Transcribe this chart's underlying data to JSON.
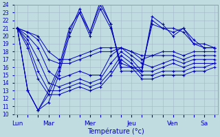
{
  "title": "",
  "xlabel": "Température (°c)",
  "ylabel": "",
  "bg_color": "#c0dce0",
  "grid_color": "#a0b8c8",
  "line_color": "#0000bb",
  "ylim": [
    10,
    24
  ],
  "yticks": [
    10,
    11,
    12,
    13,
    14,
    15,
    16,
    17,
    18,
    19,
    20,
    21,
    22,
    23,
    24
  ],
  "day_labels": [
    "Lun",
    "Mar",
    "Mer",
    "Jeu",
    "Ven",
    "Sa"
  ],
  "day_positions": [
    0,
    3,
    7,
    11,
    15,
    18
  ],
  "num_points": 20,
  "series": [
    [
      21.0,
      20.5,
      20.0,
      18.0,
      17.0,
      17.0,
      17.5,
      18.0,
      18.5,
      18.5,
      18.5,
      18.0,
      17.5,
      17.5,
      18.0,
      18.0,
      17.5,
      18.0,
      18.0,
      18.0
    ],
    [
      21.0,
      20.5,
      19.5,
      17.0,
      16.5,
      16.5,
      17.0,
      17.5,
      18.0,
      18.0,
      18.5,
      18.0,
      17.0,
      17.5,
      17.5,
      17.5,
      17.0,
      17.5,
      17.5,
      17.5
    ],
    [
      21.0,
      20.0,
      18.5,
      15.5,
      14.5,
      15.0,
      15.5,
      15.0,
      15.0,
      17.5,
      18.5,
      17.5,
      16.5,
      16.0,
      16.5,
      17.0,
      16.5,
      17.0,
      17.0,
      17.0
    ],
    [
      21.0,
      19.5,
      17.0,
      14.0,
      13.5,
      14.0,
      14.5,
      14.0,
      14.5,
      16.5,
      18.0,
      17.0,
      15.5,
      15.5,
      16.0,
      16.5,
      16.0,
      16.5,
      16.5,
      16.5
    ],
    [
      21.0,
      19.0,
      15.5,
      13.0,
      13.0,
      13.5,
      14.0,
      13.5,
      14.0,
      15.5,
      17.5,
      16.5,
      15.0,
      15.0,
      15.5,
      15.5,
      15.5,
      16.0,
      16.0,
      16.5
    ],
    [
      21.0,
      18.5,
      14.5,
      12.5,
      12.5,
      13.0,
      13.5,
      13.0,
      13.5,
      15.0,
      17.0,
      16.0,
      14.5,
      14.5,
      15.0,
      15.0,
      15.0,
      15.5,
      15.5,
      16.0
    ],
    [
      21.0,
      13.0,
      10.5,
      11.5,
      15.0,
      20.0,
      23.0,
      20.5,
      24.5,
      21.5,
      15.5,
      15.5,
      15.5,
      22.5,
      21.5,
      20.0,
      21.0,
      19.5,
      18.5,
      18.5
    ],
    [
      21.0,
      13.0,
      10.5,
      12.5,
      15.5,
      20.5,
      23.5,
      20.5,
      24.0,
      21.5,
      16.0,
      16.0,
      15.5,
      22.0,
      21.0,
      20.5,
      21.0,
      19.0,
      18.5,
      18.5
    ],
    [
      21.0,
      13.0,
      10.5,
      13.0,
      16.0,
      21.0,
      23.0,
      20.0,
      23.5,
      21.0,
      16.5,
      16.0,
      16.0,
      21.5,
      21.0,
      21.0,
      20.5,
      19.0,
      19.0,
      18.5
    ]
  ]
}
